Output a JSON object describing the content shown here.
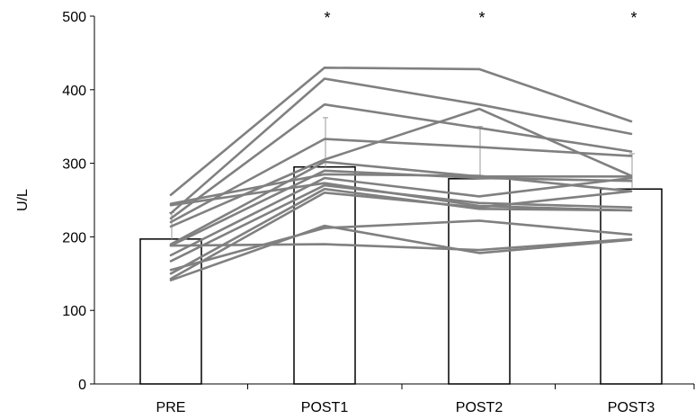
{
  "chart_data": {
    "type": "bar",
    "categories": [
      "PRE",
      "POST1",
      "POST2",
      "POST3"
    ],
    "ylabel": "U/L",
    "xlabel": "",
    "ylim": [
      0,
      500
    ],
    "yticks": [
      0,
      100,
      200,
      300,
      400,
      500
    ],
    "grid": false,
    "legend": "none",
    "means": [
      197,
      295,
      279,
      265
    ],
    "sd_upper": [
      233,
      362,
      350,
      313
    ],
    "significance_markers": [
      "",
      "*",
      "*",
      "*"
    ],
    "individual_lines": [
      [
        257,
        430,
        428,
        357
      ],
      [
        232,
        415,
        380,
        340
      ],
      [
        225,
        380,
        348,
        316
      ],
      [
        220,
        333,
        322,
        310
      ],
      [
        214,
        305,
        374,
        283
      ],
      [
        190,
        302,
        282,
        282
      ],
      [
        188,
        290,
        280,
        276
      ],
      [
        245,
        285,
        283,
        262
      ],
      [
        175,
        280,
        255,
        280
      ],
      [
        167,
        270,
        246,
        240
      ],
      [
        243,
        273,
        242,
        236
      ],
      [
        150,
        265,
        238,
        236
      ],
      [
        143,
        260,
        240,
        262
      ],
      [
        141,
        215,
        178,
        196
      ],
      [
        155,
        212,
        222,
        203
      ],
      [
        188,
        190,
        182,
        197
      ]
    ],
    "colors": {
      "lines": "#808080",
      "bars_fill": "#ffffff",
      "bars_stroke": "#000000"
    }
  }
}
